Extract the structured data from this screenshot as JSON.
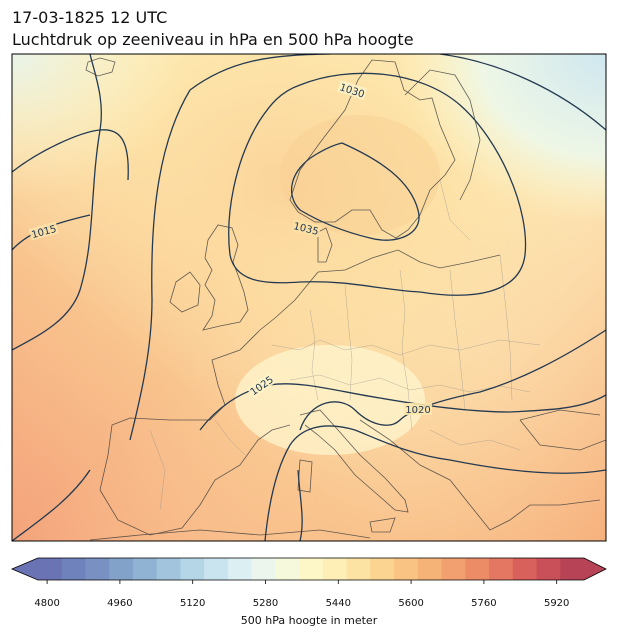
{
  "title": {
    "line1": "17-03-1825 12 UTC",
    "line2": "Luchtdruk op zeeniveau in hPa en 500 hPa hoogte"
  },
  "isobar_labels": [
    "1030",
    "1035",
    "1015",
    "1025",
    "1020"
  ],
  "colorbar": {
    "title": "500 hPa hoogte in meter",
    "ticks": [
      "4800",
      "4960",
      "5120",
      "5280",
      "5440",
      "5600",
      "5760",
      "5920"
    ],
    "min": 4780,
    "max": 5980,
    "colors": [
      "#6a74b4",
      "#6f82bb",
      "#7891c2",
      "#83a2ca",
      "#91b3d3",
      "#a2c5dd",
      "#b5d6e7",
      "#c9e4ef",
      "#dcf0f3",
      "#ecf6ec",
      "#f7f9dc",
      "#fdf7c7",
      "#fdefb6",
      "#fde3a3",
      "#fbd491",
      "#f9c483",
      "#f6b378",
      "#f2a06f",
      "#ec8c67",
      "#e47761",
      "#d9615c",
      "#c94f59",
      "#b74456"
    ]
  }
}
